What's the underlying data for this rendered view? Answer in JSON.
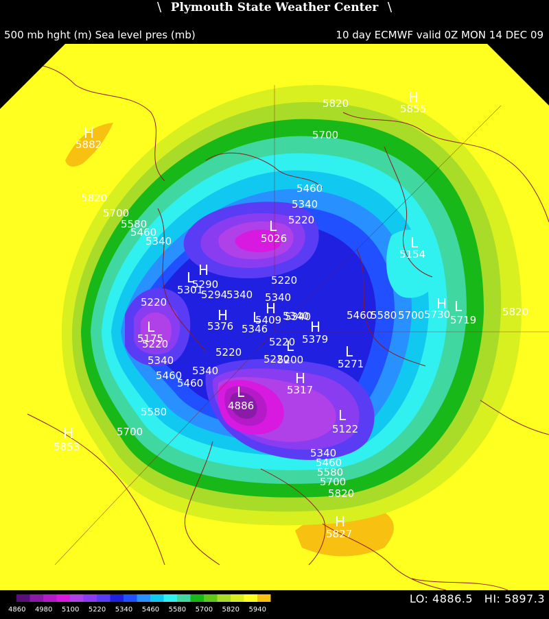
{
  "header": {
    "title": "Plymouth State Weather Center",
    "left_text": "500 mb hght (m) Sea level pres (mb)",
    "right_text": "10 day ECMWF valid 0Z MON 14 DEC 09"
  },
  "legend": {
    "levels": [
      4860,
      4980,
      5100,
      5220,
      5340,
      5460,
      5580,
      5700,
      5820,
      5940
    ],
    "colors": [
      "#5a0f78",
      "#8a1aa8",
      "#b41ac8",
      "#d81ae0",
      "#b040e8",
      "#8a3cf0",
      "#5a3cf5",
      "#2020e0",
      "#2050ff",
      "#2890ff",
      "#10c8f0",
      "#30f0f0",
      "#40d8a0",
      "#18b818",
      "#60c818",
      "#a8dc28",
      "#d8f020",
      "#ffff20",
      "#f8c010"
    ]
  },
  "stats": {
    "lo_label": "LO:",
    "lo_value": "4886.5",
    "hi_label": "HI:",
    "hi_value": "5897.3"
  },
  "map": {
    "contour_labels": [
      "5820",
      "5700",
      "5460",
      "5340",
      "5220",
      "5820",
      "5700",
      "5580",
      "5460",
      "5340",
      "5220",
      "5220",
      "5220",
      "5340",
      "5460",
      "5580",
      "5700",
      "5340",
      "5460",
      "5220",
      "5340",
      "5340",
      "5220",
      "5460",
      "5580",
      "5700",
      "5820",
      "5340",
      "5460",
      "5580",
      "5700",
      "5820",
      "5294",
      "5340",
      "5220",
      "5340"
    ],
    "centers": [
      {
        "type": "H",
        "value": "5855"
      },
      {
        "type": "H",
        "value": "5882"
      },
      {
        "type": "L",
        "value": "5026"
      },
      {
        "type": "L",
        "value": "5154"
      },
      {
        "type": "L",
        "value": "5175"
      },
      {
        "type": "H",
        "value": "5376"
      },
      {
        "type": "H",
        "value": "5409"
      },
      {
        "type": "L",
        "value": "4886"
      },
      {
        "type": "H",
        "value": "5317"
      },
      {
        "type": "L",
        "value": "5271"
      },
      {
        "type": "L",
        "value": "5122"
      },
      {
        "type": "H",
        "value": "5853"
      },
      {
        "type": "H",
        "value": "5827"
      },
      {
        "type": "L",
        "value": "5719"
      },
      {
        "type": "H",
        "value": "5730"
      },
      {
        "type": "L",
        "value": "5200"
      },
      {
        "type": "H",
        "value": "5379"
      },
      {
        "type": "L",
        "value": "5301"
      },
      {
        "type": "H",
        "value": "5290"
      },
      {
        "type": "L",
        "value": "5346"
      }
    ]
  }
}
